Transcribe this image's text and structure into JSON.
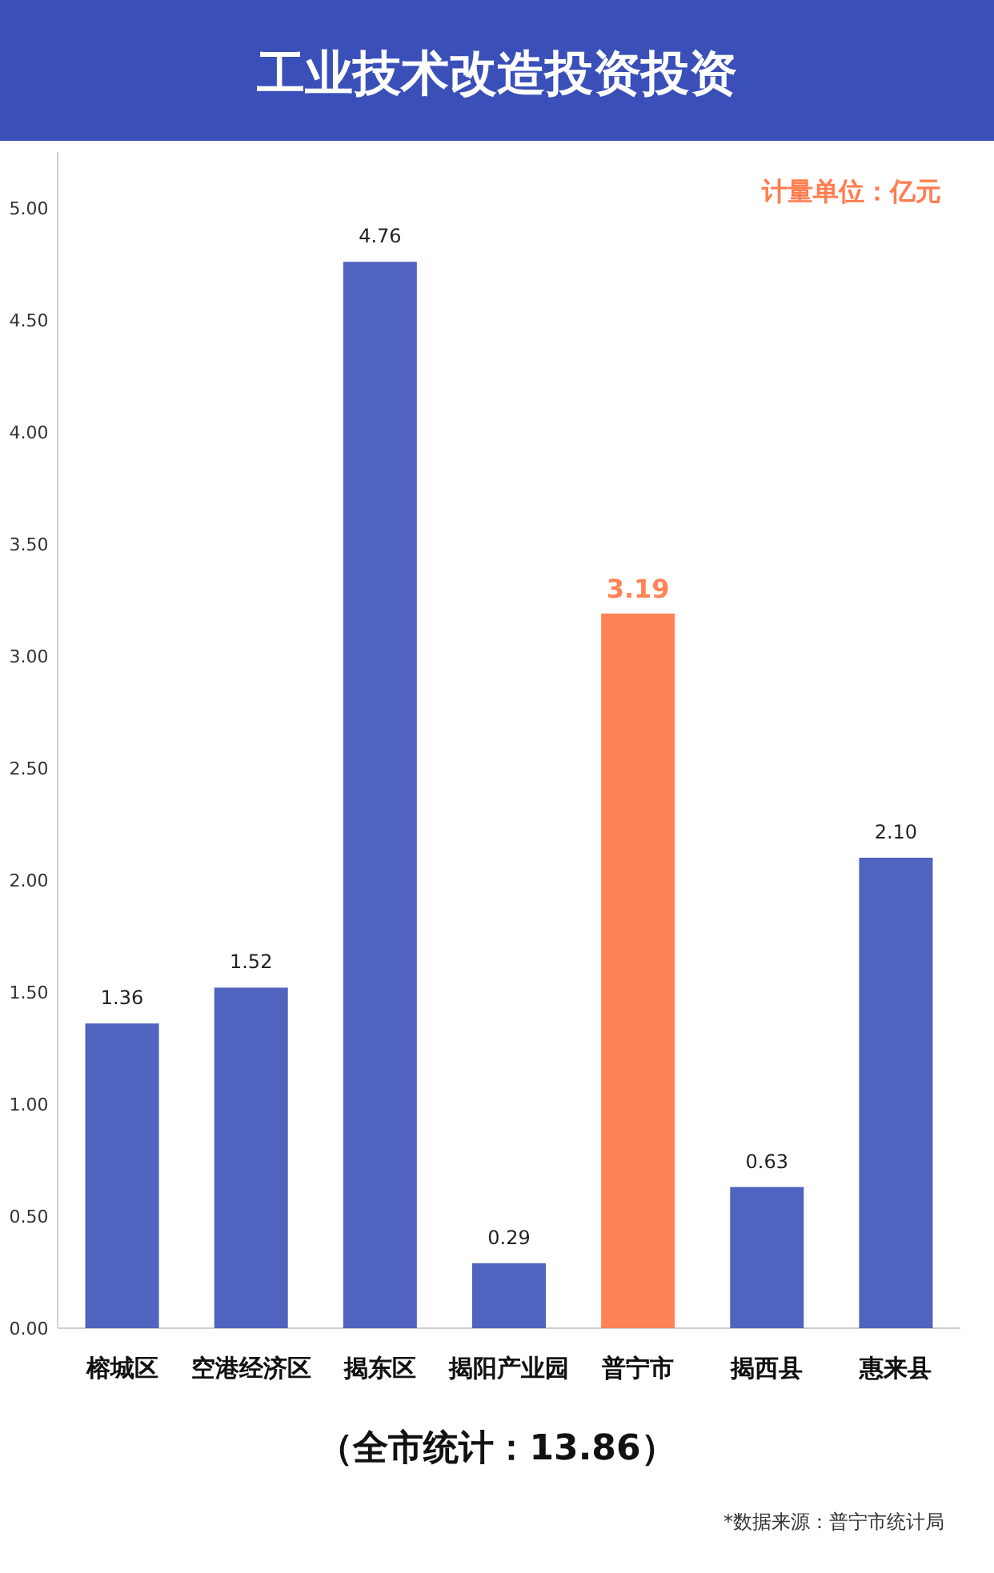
{
  "chart_data": {
    "type": "bar",
    "title": "工业技术改造投资投资",
    "categories": [
      "榕城区",
      "空港经济区",
      "揭东区",
      "揭阳产业园",
      "普宁市",
      "揭西县",
      "惠来县"
    ],
    "values": [
      1.36,
      1.52,
      4.76,
      0.29,
      3.19,
      0.63,
      2.1
    ],
    "colors": [
      "#4f63bf",
      "#4f63bf",
      "#4f63bf",
      "#4f63bf",
      "#ff8356",
      "#4f63bf",
      "#4f63bf"
    ],
    "value_labels": [
      "1.36",
      "1.52",
      "4.76",
      "0.29",
      "3.19",
      "0.63",
      "2.10"
    ],
    "ylim": [
      0,
      5.25
    ],
    "yticks": [
      {
        "value": 0,
        "label": "0.00"
      },
      {
        "value": 0.5,
        "label": "0.50"
      },
      {
        "value": 1,
        "label": "1.00"
      },
      {
        "value": 1.5,
        "label": "1.50"
      },
      {
        "value": 2,
        "label": "2.00"
      },
      {
        "value": 2.5,
        "label": "2.50"
      },
      {
        "value": 3,
        "label": "3.00"
      },
      {
        "value": 3.5,
        "label": "3.50"
      },
      {
        "value": 4,
        "label": "4.00"
      },
      {
        "value": 4.5,
        "label": "4.50"
      },
      {
        "value": 5,
        "label": "5.00"
      }
    ],
    "annotations": [
      "计量单位：亿元",
      "（全市统计：13.86）",
      "*数据来源：普宁市统计局"
    ]
  }
}
